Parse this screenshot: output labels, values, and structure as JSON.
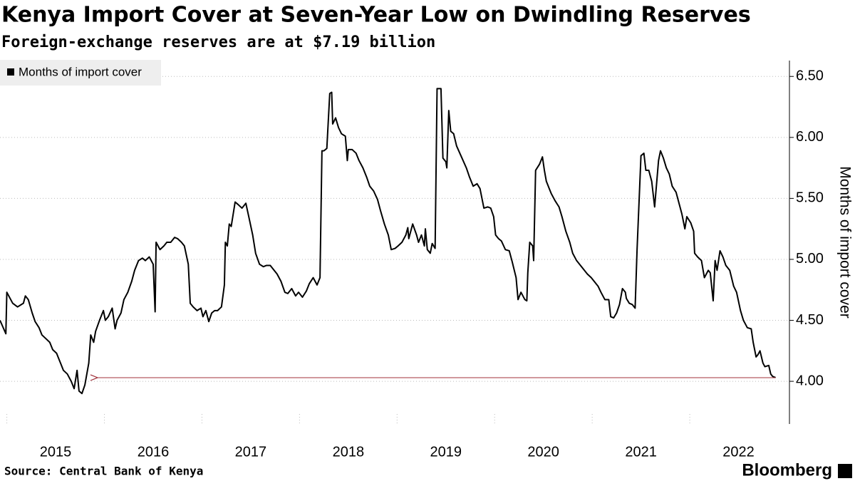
{
  "chart_data": {
    "type": "line",
    "title": "Kenya Import Cover at Seven-Year Low on Dwindling Reserves",
    "subtitle": "Foreign-exchange reserves are at $7.19 billion",
    "ylabel": "Months of import cover",
    "source": "Source:  Central Bank of Kenya",
    "brand": "Bloomberg",
    "legend": "top-left",
    "grid": true,
    "xlim": [
      2014.93,
      2023.0
    ],
    "xticks": [
      2015,
      2016,
      2017,
      2018,
      2019,
      2020,
      2021,
      2022
    ],
    "ylim": [
      3.65,
      6.63
    ],
    "yticks": [
      {
        "value": 4,
        "label": "4.00"
      },
      {
        "value": 4.5,
        "label": "4.50"
      },
      {
        "value": 5,
        "label": "5.00"
      },
      {
        "value": 5.5,
        "label": "5.50"
      },
      {
        "value": 6,
        "label": "6.00"
      },
      {
        "value": 6.5,
        "label": "6.50"
      }
    ],
    "x": [
      2014.93,
      2014.99,
      2015.0,
      2015.06,
      2015.11,
      2015.15,
      2015.17,
      2015.19,
      2015.22,
      2015.26,
      2015.29,
      2015.33,
      2015.36,
      2015.4,
      2015.44,
      2015.47,
      2015.51,
      2015.55,
      2015.58,
      2015.62,
      2015.66,
      2015.69,
      2015.72,
      2015.74,
      2015.77,
      2015.8,
      2015.84,
      2015.86,
      2015.89,
      2015.91,
      2015.95,
      2015.99,
      2016.01,
      2016.04,
      2016.08,
      2016.11,
      2016.13,
      2016.17,
      2016.2,
      2016.24,
      2016.28,
      2016.31,
      2016.35,
      2016.39,
      2016.42,
      2016.46,
      2016.5,
      2016.52,
      2016.53,
      2016.57,
      2016.61,
      2016.64,
      2016.68,
      2016.72,
      2016.75,
      2016.79,
      2016.82,
      2016.86,
      2016.88,
      2016.91,
      2016.95,
      2016.99,
      2017.01,
      2017.04,
      2017.07,
      2017.1,
      2017.13,
      2017.16,
      2017.2,
      2017.23,
      2017.24,
      2017.26,
      2017.28,
      2017.3,
      2017.34,
      2017.37,
      2017.41,
      2017.45,
      2017.48,
      2017.52,
      2017.55,
      2017.59,
      2017.63,
      2017.66,
      2017.7,
      2017.74,
      2017.77,
      2017.81,
      2017.85,
      2017.88,
      2017.92,
      2017.96,
      2017.99,
      2018.03,
      2018.07,
      2018.1,
      2018.14,
      2018.18,
      2018.21,
      2018.23,
      2018.25,
      2018.28,
      2018.31,
      2018.33,
      2018.34,
      2018.37,
      2018.4,
      2018.43,
      2018.47,
      2018.49,
      2018.5,
      2018.54,
      2018.58,
      2018.61,
      2018.65,
      2018.69,
      2018.72,
      2018.76,
      2018.8,
      2018.83,
      2018.87,
      2018.91,
      2018.94,
      2018.98,
      2019.01,
      2019.05,
      2019.09,
      2019.11,
      2019.12,
      2019.16,
      2019.2,
      2019.22,
      2019.25,
      2019.28,
      2019.29,
      2019.31,
      2019.34,
      2019.36,
      2019.39,
      2019.41,
      2019.45,
      2019.47,
      2019.5,
      2019.51,
      2019.53,
      2019.55,
      2019.58,
      2019.61,
      2019.66,
      2019.71,
      2019.74,
      2019.78,
      2019.82,
      2019.85,
      2019.89,
      2019.93,
      2019.96,
      2019.99,
      2020.01,
      2020.04,
      2020.07,
      2020.11,
      2020.15,
      2020.18,
      2020.22,
      2020.24,
      2020.27,
      2020.31,
      2020.33,
      2020.34,
      2020.36,
      2020.39,
      2020.4,
      2020.42,
      2020.46,
      2020.49,
      2020.51,
      2020.53,
      2020.56,
      2020.58,
      2020.62,
      2020.66,
      2020.69,
      2020.73,
      2020.77,
      2020.8,
      2020.84,
      2020.88,
      2020.91,
      2020.95,
      2020.99,
      2021.02,
      2021.06,
      2021.09,
      2021.13,
      2021.17,
      2021.19,
      2021.22,
      2021.25,
      2021.28,
      2021.31,
      2021.34,
      2021.35,
      2021.38,
      2021.41,
      2021.44,
      2021.46,
      2021.5,
      2021.53,
      2021.55,
      2021.58,
      2021.61,
      2021.64,
      2021.68,
      2021.7,
      2021.73,
      2021.76,
      2021.79,
      2021.82,
      2021.86,
      2021.9,
      2021.92,
      2021.95,
      2021.97,
      2022.01,
      2022.04,
      2022.05,
      2022.08,
      2022.12,
      2022.15,
      2022.19,
      2022.21,
      2022.24,
      2022.26,
      2022.28,
      2022.31,
      2022.34,
      2022.37,
      2022.41,
      2022.45,
      2022.48,
      2022.52,
      2022.55,
      2022.59,
      2022.63,
      2022.65,
      2022.68,
      2022.7,
      2022.72,
      2022.75,
      2022.77,
      2022.81,
      2022.83,
      2022.85,
      2022.88
    ],
    "series": [
      {
        "name": "Months of import cover",
        "color": "#000000",
        "values": [
          4.5,
          4.39,
          4.73,
          4.64,
          4.61,
          4.63,
          4.64,
          4.7,
          4.67,
          4.56,
          4.49,
          4.44,
          4.38,
          4.35,
          4.32,
          4.26,
          4.23,
          4.15,
          4.09,
          4.06,
          4.0,
          3.94,
          4.09,
          3.92,
          3.9,
          3.97,
          4.15,
          4.38,
          4.32,
          4.41,
          4.5,
          4.58,
          4.5,
          4.53,
          4.6,
          4.43,
          4.5,
          4.56,
          4.67,
          4.73,
          4.82,
          4.91,
          4.99,
          5.01,
          4.99,
          5.02,
          4.96,
          4.57,
          5.14,
          5.08,
          5.11,
          5.14,
          5.14,
          5.18,
          5.17,
          5.14,
          5.11,
          4.96,
          4.64,
          4.61,
          4.58,
          4.6,
          4.53,
          4.58,
          4.49,
          4.56,
          4.58,
          4.58,
          4.61,
          4.79,
          5.14,
          5.11,
          5.29,
          5.27,
          5.47,
          5.45,
          5.42,
          5.46,
          5.35,
          5.2,
          5.05,
          4.96,
          4.94,
          4.95,
          4.95,
          4.91,
          4.88,
          4.82,
          4.73,
          4.72,
          4.76,
          4.7,
          4.73,
          4.69,
          4.74,
          4.8,
          4.85,
          4.79,
          4.85,
          5.89,
          5.89,
          5.91,
          6.36,
          6.37,
          6.11,
          6.16,
          6.08,
          6.03,
          6.01,
          5.81,
          5.9,
          5.9,
          5.87,
          5.81,
          5.75,
          5.67,
          5.6,
          5.56,
          5.49,
          5.4,
          5.29,
          5.2,
          5.08,
          5.09,
          5.11,
          5.14,
          5.2,
          5.26,
          5.17,
          5.29,
          5.2,
          5.14,
          5.2,
          5.11,
          5.25,
          5.08,
          5.05,
          5.13,
          5.09,
          6.4,
          6.4,
          5.83,
          5.8,
          5.75,
          6.22,
          6.05,
          6.03,
          5.93,
          5.84,
          5.75,
          5.68,
          5.6,
          5.62,
          5.58,
          5.42,
          5.43,
          5.42,
          5.35,
          5.2,
          5.17,
          5.15,
          5.08,
          5.07,
          4.98,
          4.85,
          4.67,
          4.73,
          4.67,
          4.66,
          4.89,
          5.14,
          5.11,
          4.99,
          5.73,
          5.78,
          5.84,
          5.73,
          5.64,
          5.58,
          5.54,
          5.48,
          5.43,
          5.35,
          5.23,
          5.14,
          5.05,
          4.99,
          4.95,
          4.92,
          4.88,
          4.85,
          4.82,
          4.78,
          4.73,
          4.67,
          4.67,
          4.53,
          4.52,
          4.56,
          4.63,
          4.76,
          4.73,
          4.68,
          4.64,
          4.63,
          4.6,
          5.08,
          5.85,
          5.87,
          5.73,
          5.73,
          5.64,
          5.43,
          5.81,
          5.89,
          5.83,
          5.75,
          5.7,
          5.6,
          5.55,
          5.43,
          5.37,
          5.25,
          5.35,
          5.3,
          5.23,
          5.05,
          5.02,
          4.99,
          4.85,
          4.91,
          4.89,
          4.66,
          4.99,
          4.91,
          5.07,
          5.02,
          4.95,
          4.91,
          4.78,
          4.73,
          4.58,
          4.5,
          4.44,
          4.43,
          4.32,
          4.2,
          4.22,
          4.25,
          4.15,
          4.12,
          4.13,
          4.06,
          4.04,
          4.03
        ]
      }
    ]
  }
}
